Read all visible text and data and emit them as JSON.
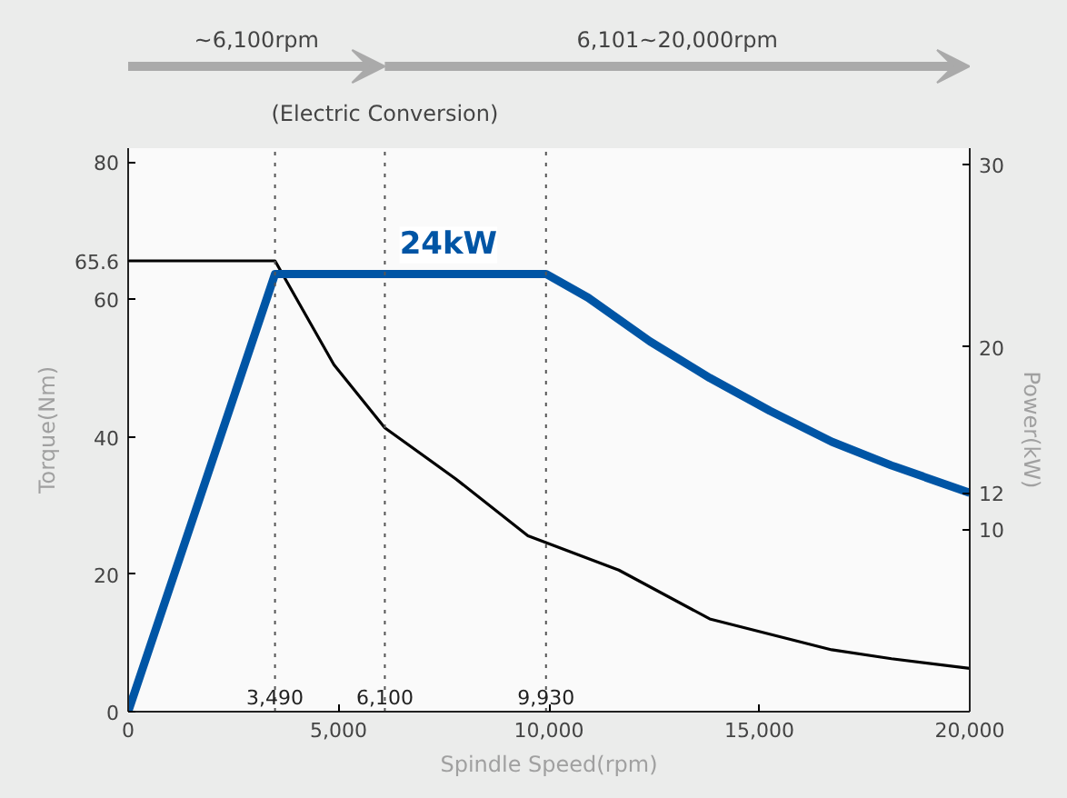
{
  "chart_data": {
    "type": "line",
    "xlabel": "Spindle Speed(rpm)",
    "ylabel": "Torque(Nm)",
    "y2label": "Power(kW)",
    "xlim": [
      0,
      20000
    ],
    "xticks": [
      {
        "value": 0,
        "label": "0"
      },
      {
        "value": 5000,
        "label": "5,000"
      },
      {
        "value": 10000,
        "label": "10,000"
      },
      {
        "value": 15000,
        "label": "15,000"
      },
      {
        "value": 20000,
        "label": "20,000"
      }
    ],
    "ylim": [
      0,
      82
    ],
    "yticks": [
      0,
      20,
      40,
      60,
      65.6,
      80
    ],
    "y2lim": [
      0,
      30.9
    ],
    "y2ticks": [
      10,
      12,
      20,
      30
    ],
    "series": [
      {
        "color": "#000000",
        "x": [
          0,
          3490,
          4890,
          6100,
          7780,
          9500,
          9930,
          11660,
          13820,
          16720,
          18140,
          20000
        ],
        "values": [
          65.6,
          65.6,
          50.5,
          41.3,
          33.9,
          25.6,
          24.6,
          20.6,
          13.5,
          9.0,
          7.7,
          6.3
        ]
      },
      {
        "color": "#0055a5",
        "axis": "y2",
        "x": [
          0,
          3490,
          9930,
          10930,
          12400,
          13820,
          15250,
          16720,
          18140,
          20000
        ],
        "values": [
          0,
          24,
          24,
          22.7,
          20.3,
          18.3,
          16.5,
          14.8,
          13.5,
          12
        ]
      }
    ],
    "ref_lines": [
      {
        "axis": "x",
        "value": 3490,
        "label": "3,490",
        "line_style": "dotted"
      },
      {
        "axis": "x",
        "value": 6100,
        "label": "6,100",
        "line_style": "dotted"
      },
      {
        "axis": "x",
        "value": 9930,
        "label": "9,930",
        "line_style": "dotted"
      }
    ],
    "annotations": [
      "~6,100rpm",
      "6,101~20,000rpm",
      "(Electric Conversion)",
      "24kW"
    ],
    "grid": false,
    "marker": "none",
    "line_style": "solid"
  }
}
